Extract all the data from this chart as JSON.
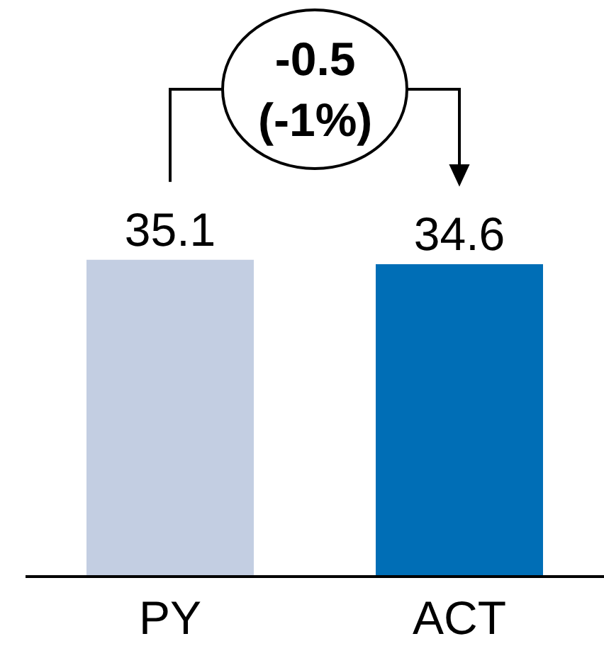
{
  "chart_data": {
    "type": "bar",
    "categories": [
      "PY",
      "ACT"
    ],
    "values": [
      35.1,
      34.6
    ],
    "colors": [
      "#c3cee2",
      "#006eb6"
    ],
    "data_labels": true,
    "ylim": [
      0,
      64
    ],
    "tick_labels": "x",
    "annotations": [
      "-0.5\n(-1%)"
    ]
  }
}
